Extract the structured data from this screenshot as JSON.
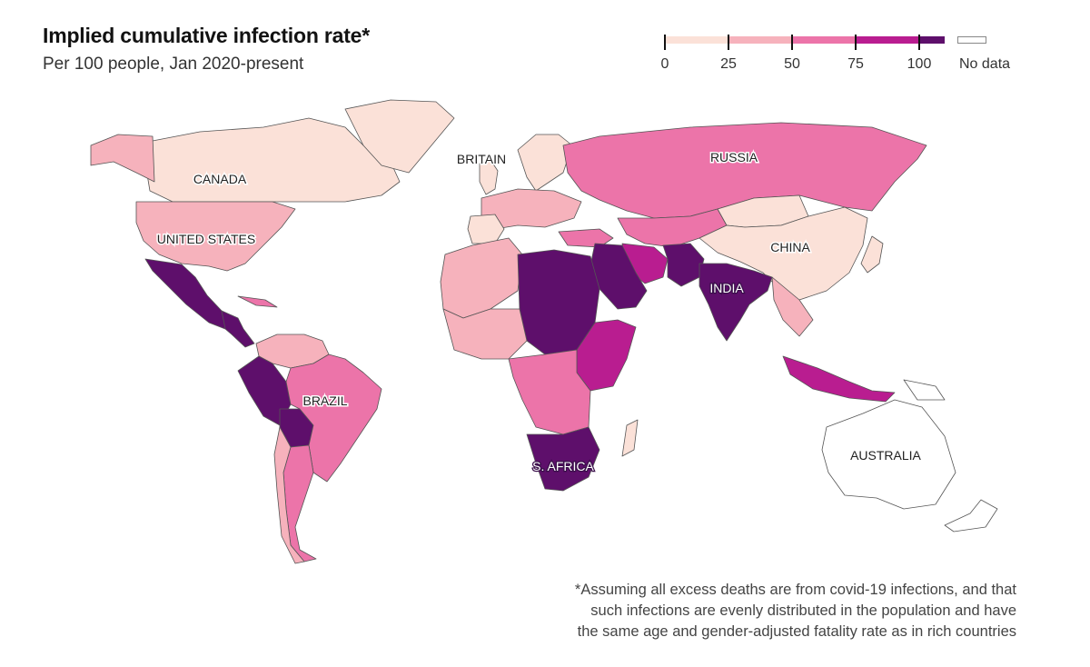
{
  "title": "Implied cumulative infection rate*",
  "subtitle": "Per 100 people, Jan 2020-present",
  "legend": {
    "ticks": [
      "0",
      "25",
      "50",
      "75",
      "100"
    ],
    "colors": [
      "#fbe1d8",
      "#f6b2bc",
      "#ec74a9",
      "#b91d90",
      "#5e0f6b"
    ],
    "no_data_label": "No data",
    "no_data_color": "#ffffff"
  },
  "labels": {
    "canada": "CANADA",
    "united_states": "UNITED STATES",
    "britain": "BRITAIN",
    "russia": "RUSSIA",
    "china": "CHINA",
    "india": "INDIA",
    "brazil": "BRAZIL",
    "s_africa": "S. AFRICA",
    "australia": "AUSTRALIA"
  },
  "footnote": [
    "*Assuming all excess deaths are from covid-19 infections, and that",
    "such infections are evenly distributed in the population and have",
    "the same age and gender-adjusted fatality rate as in rich countries"
  ]
}
